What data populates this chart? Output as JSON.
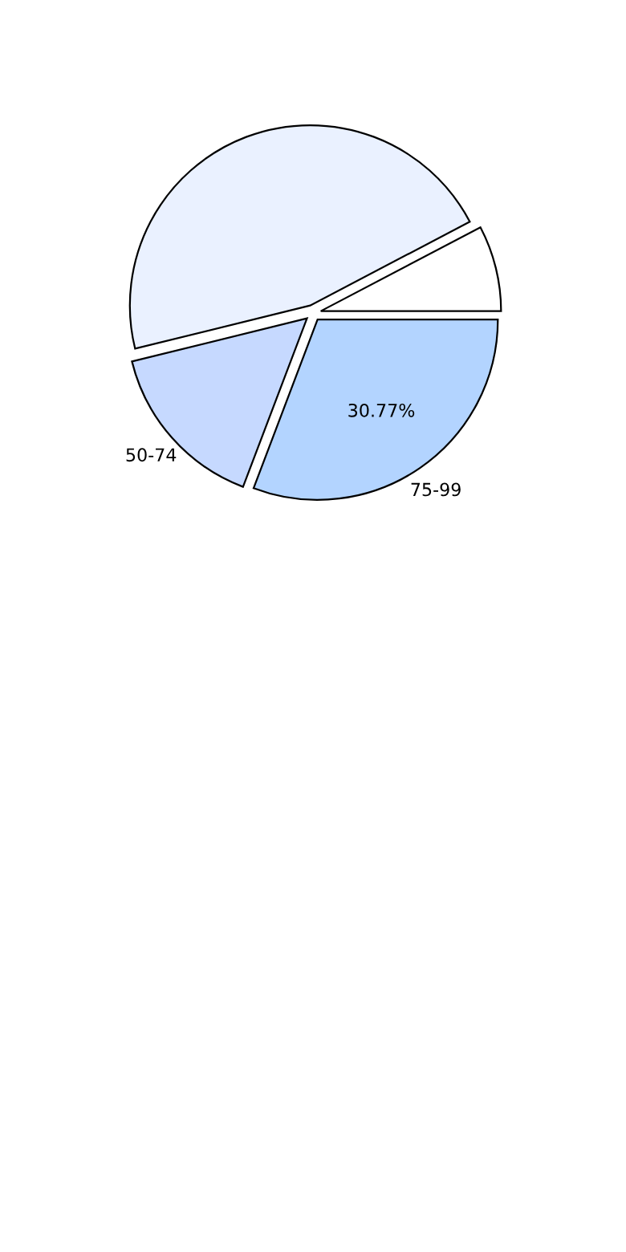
{
  "chart_data": {
    "type": "pie",
    "categories": [
      null,
      null,
      "50-74",
      "75-99"
    ],
    "values": [
      7.69,
      46.15,
      15.38,
      30.77
    ],
    "colors": [
      "#ffffff",
      "#eaf1ff",
      "#c6d9ff",
      "#b3d4ff"
    ],
    "value_labels": [
      null,
      null,
      null,
      "30.77%"
    ]
  }
}
